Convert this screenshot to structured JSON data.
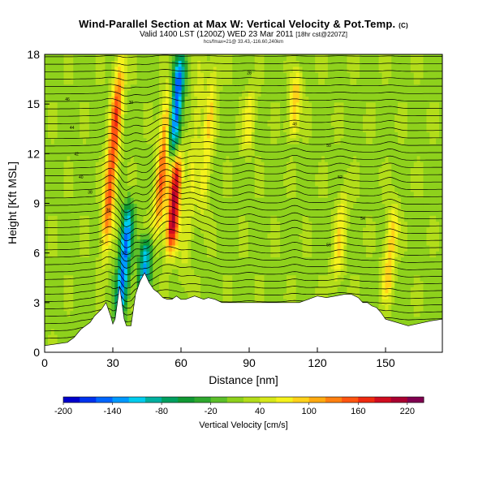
{
  "header": {
    "title": "Wind-Parallel Section at Max W: Vertical Velocity & Pot.Temp.",
    "copyright": "(C)",
    "subtitle": "Valid 1400 LST (1200Z) WED 23 Mar 2011",
    "subtitle_extra": "[18hr cst@2207Z]",
    "subtitle_small": "hcs/fmax=21@ 33.43,-116.60,240km"
  },
  "chart_data": {
    "type": "heatmap",
    "xlabel": "Distance [nm]",
    "ylabel": "Height [Kft MSL]",
    "xlim": [
      0,
      175
    ],
    "ylim": [
      0,
      18
    ],
    "xticks": [
      0,
      30,
      60,
      90,
      120,
      150
    ],
    "yticks": [
      0,
      3,
      6,
      9,
      12,
      15,
      18
    ],
    "grid": false,
    "colorbar": {
      "title": "Vertical Velocity [cm/s]",
      "min": -200,
      "max": 240,
      "step": 20,
      "tick_values": [
        -200,
        -140,
        -80,
        -20,
        40,
        100,
        160,
        220
      ],
      "colors": [
        "#0000cc",
        "#0033ee",
        "#0066ff",
        "#0099ff",
        "#00ccee",
        "#00b0a0",
        "#00a060",
        "#119933",
        "#2ea82e",
        "#5cbf2a",
        "#8ed11c",
        "#b3dd1a",
        "#d6e81a",
        "#f5f21c",
        "#ffd21a",
        "#ffaa10",
        "#ff8010",
        "#ff5510",
        "#ee2a10",
        "#d00d20",
        "#aa0030",
        "#800050"
      ]
    },
    "terrain_profile": {
      "distance_nm": [
        0,
        10,
        13,
        16,
        20,
        22,
        25,
        27,
        28,
        29,
        30,
        31,
        32,
        33,
        34,
        35,
        36,
        38,
        40,
        42,
        44,
        46,
        48,
        50,
        52,
        54,
        56,
        58,
        60,
        62,
        64,
        66,
        68,
        70,
        72,
        75,
        78,
        80,
        84,
        88,
        92,
        96,
        100,
        104,
        108,
        112,
        116,
        120,
        124,
        128,
        132,
        135,
        138,
        140,
        142,
        144,
        146,
        148,
        150,
        155,
        160,
        170,
        175
      ],
      "height_kft": [
        0.4,
        0.6,
        0.9,
        1.4,
        1.8,
        2.2,
        2.6,
        3.0,
        2.6,
        2.2,
        1.7,
        2.0,
        3.0,
        4.0,
        3.0,
        2.0,
        1.6,
        1.6,
        3.5,
        4.3,
        4.8,
        4.2,
        3.8,
        3.6,
        3.3,
        3.2,
        3.2,
        3.4,
        3.2,
        3.2,
        3.3,
        3.4,
        3.3,
        3.2,
        3.3,
        3.2,
        3.0,
        3.0,
        3.0,
        3.0,
        3.0,
        3.0,
        3.0,
        3.0,
        3.0,
        3.0,
        3.2,
        3.4,
        3.3,
        3.4,
        3.5,
        3.5,
        3.3,
        3.0,
        3.0,
        2.8,
        2.7,
        2.4,
        2.0,
        1.8,
        1.6,
        1.9,
        2.0
      ]
    },
    "vertical_velocity_features": [
      {
        "center_nm": 30,
        "value_cms": 140,
        "z_range_kft": [
          6,
          18
        ]
      },
      {
        "center_nm": 35,
        "value_cms": -160,
        "z_range_kft": [
          2,
          9
        ]
      },
      {
        "center_nm": 44,
        "value_cms": -140,
        "z_range_kft": [
          3,
          7
        ]
      },
      {
        "center_nm": 52,
        "value_cms": 120,
        "z_range_kft": [
          7,
          16
        ]
      },
      {
        "center_nm": 57,
        "value_cms": 200,
        "z_range_kft": [
          6,
          12
        ]
      },
      {
        "center_nm": 58,
        "value_cms": -180,
        "z_range_kft": [
          12,
          18
        ]
      },
      {
        "center_nm": 65,
        "value_cms": 40,
        "z_range_kft": [
          4,
          18
        ]
      },
      {
        "center_nm": 72,
        "value_cms": 60,
        "z_range_kft": [
          8,
          18
        ]
      },
      {
        "center_nm": 90,
        "value_cms": 60,
        "z_range_kft": [
          12,
          16
        ]
      },
      {
        "center_nm": 110,
        "value_cms": 80,
        "z_range_kft": [
          13,
          17
        ]
      },
      {
        "center_nm": 130,
        "value_cms": 60,
        "z_range_kft": [
          4,
          10
        ]
      },
      {
        "center_nm": 152,
        "value_cms": 80,
        "z_range_kft": [
          3,
          9
        ]
      }
    ],
    "theta_contours_K": {
      "interval": 2,
      "count": 40
    },
    "contour_label_values": [
      "46",
      "44",
      "42",
      "40",
      "38",
      "36",
      "34",
      "32",
      "30",
      "28",
      "48",
      "50",
      "52",
      "54",
      "56"
    ]
  }
}
